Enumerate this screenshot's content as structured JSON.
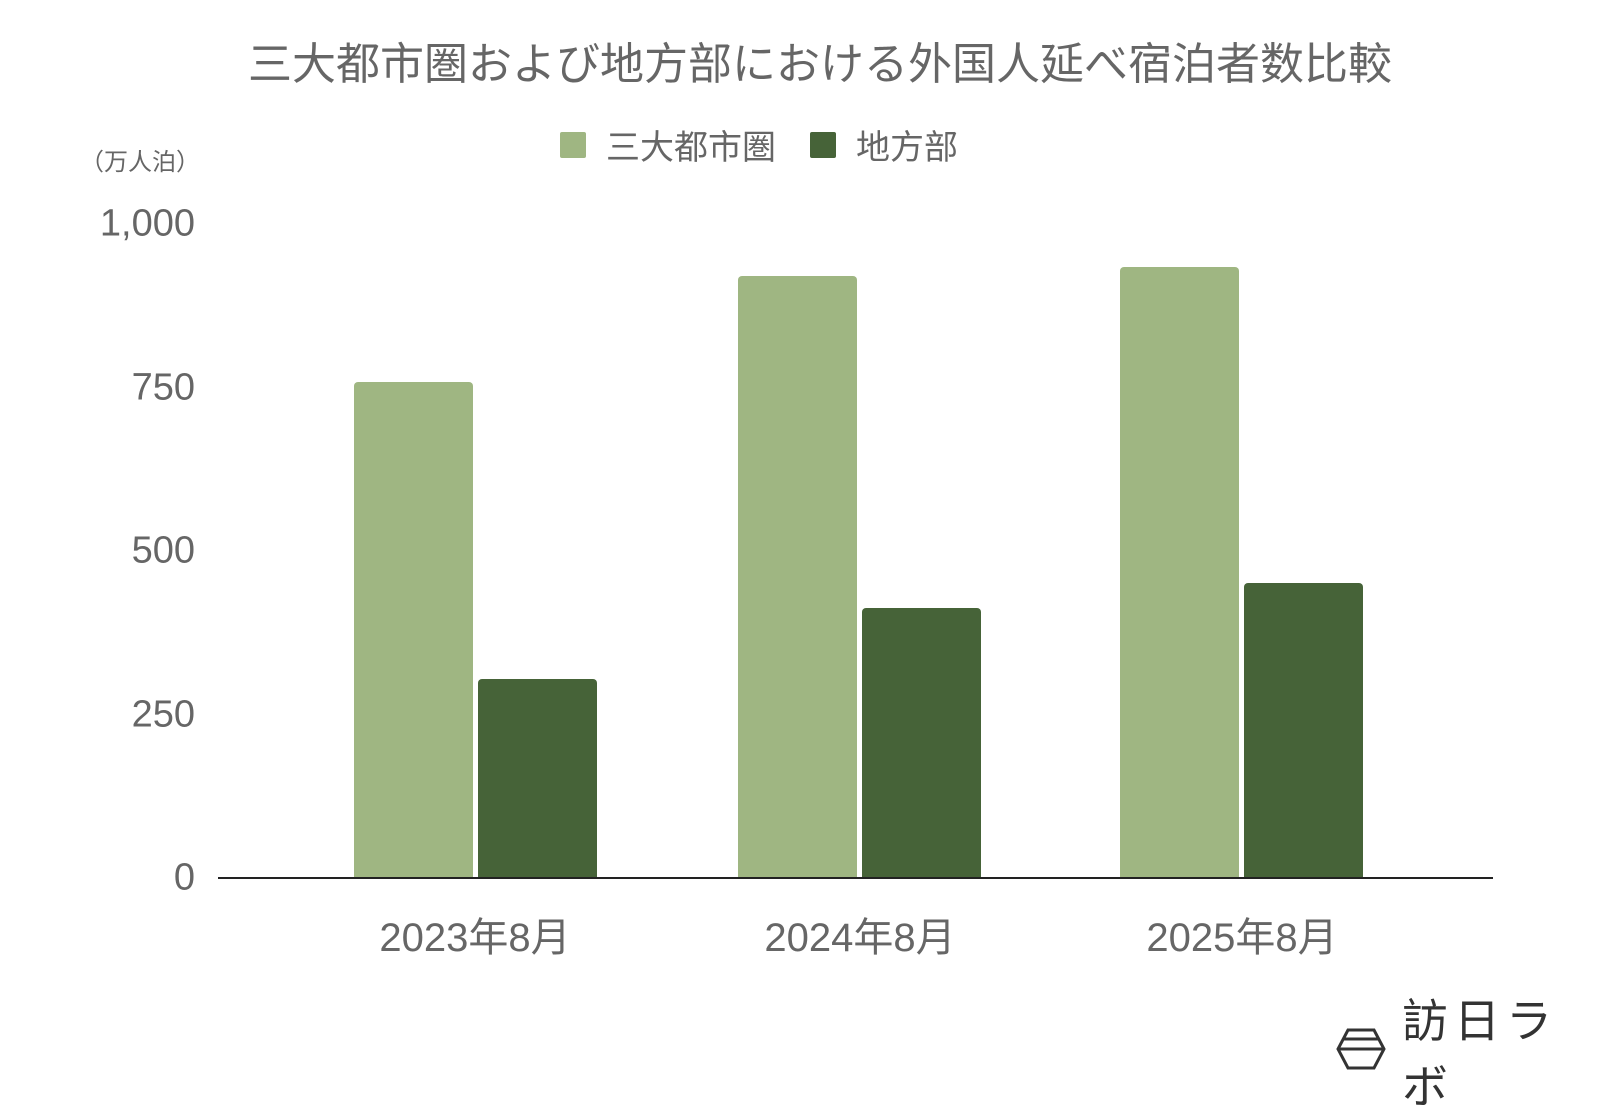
{
  "title": "三大都市圏および地方部における外国人延べ宿泊者数比較",
  "unit_label": "（万人泊）",
  "legend": [
    {
      "label": "三大都市圏",
      "color": "#9fb682"
    },
    {
      "label": "地方部",
      "color": "#466338"
    }
  ],
  "y_ticks": [
    "1,000",
    "750",
    "500",
    "250",
    "0"
  ],
  "x_labels": [
    "2023年8月",
    "2024年8月",
    "2025年8月"
  ],
  "brand": {
    "text": "訪日ラボ",
    "icon": "hexagon-logo-icon"
  },
  "chart_data": {
    "type": "bar",
    "title": "三大都市圏および地方部における外国人延べ宿泊者数比較",
    "xlabel": "",
    "ylabel": "万人泊",
    "categories": [
      "2023年8月",
      "2024年8月",
      "2025年8月"
    ],
    "series": [
      {
        "name": "三大都市圏",
        "color": "#9fb682",
        "values": [
          758,
          920,
          934
        ]
      },
      {
        "name": "地方部",
        "color": "#466338",
        "values": [
          304,
          413,
          451
        ]
      }
    ],
    "ylim": [
      0,
      1000
    ],
    "yticks": [
      0,
      250,
      500,
      750,
      1000
    ],
    "grid": false,
    "legend_position": "top"
  }
}
